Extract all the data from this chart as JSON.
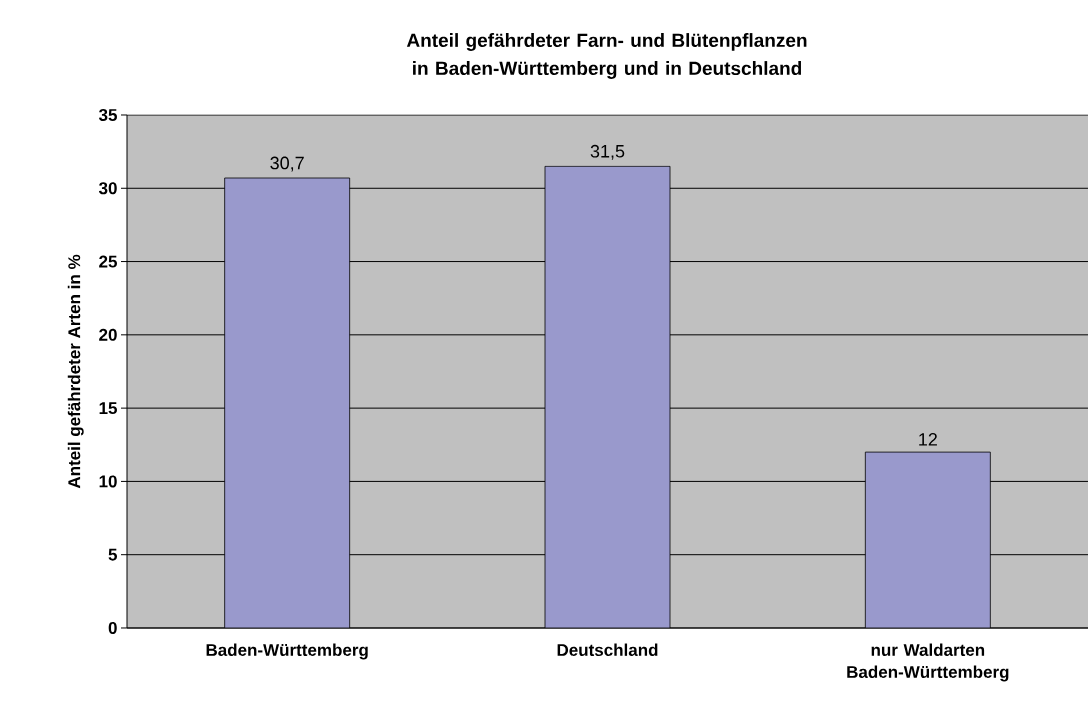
{
  "chart_data": {
    "type": "bar",
    "title": "Anteil gefährdeter Farn- und Blütenpflanzen in Baden-Württemberg und in Deutschland",
    "ylabel": "Anteil gefährdeter Arten in %",
    "categories": [
      "Baden-Württemberg",
      "Deutschland",
      "nur Waldarten Baden-Württemberg"
    ],
    "values": [
      30.7,
      31.5,
      12
    ],
    "value_labels": [
      "30,7",
      "31,5",
      "12"
    ],
    "color": "#9999cc",
    "ylim": [
      0,
      35
    ],
    "yticks": [
      0,
      5,
      10,
      15,
      20,
      25,
      30,
      35
    ],
    "grid": "y"
  }
}
